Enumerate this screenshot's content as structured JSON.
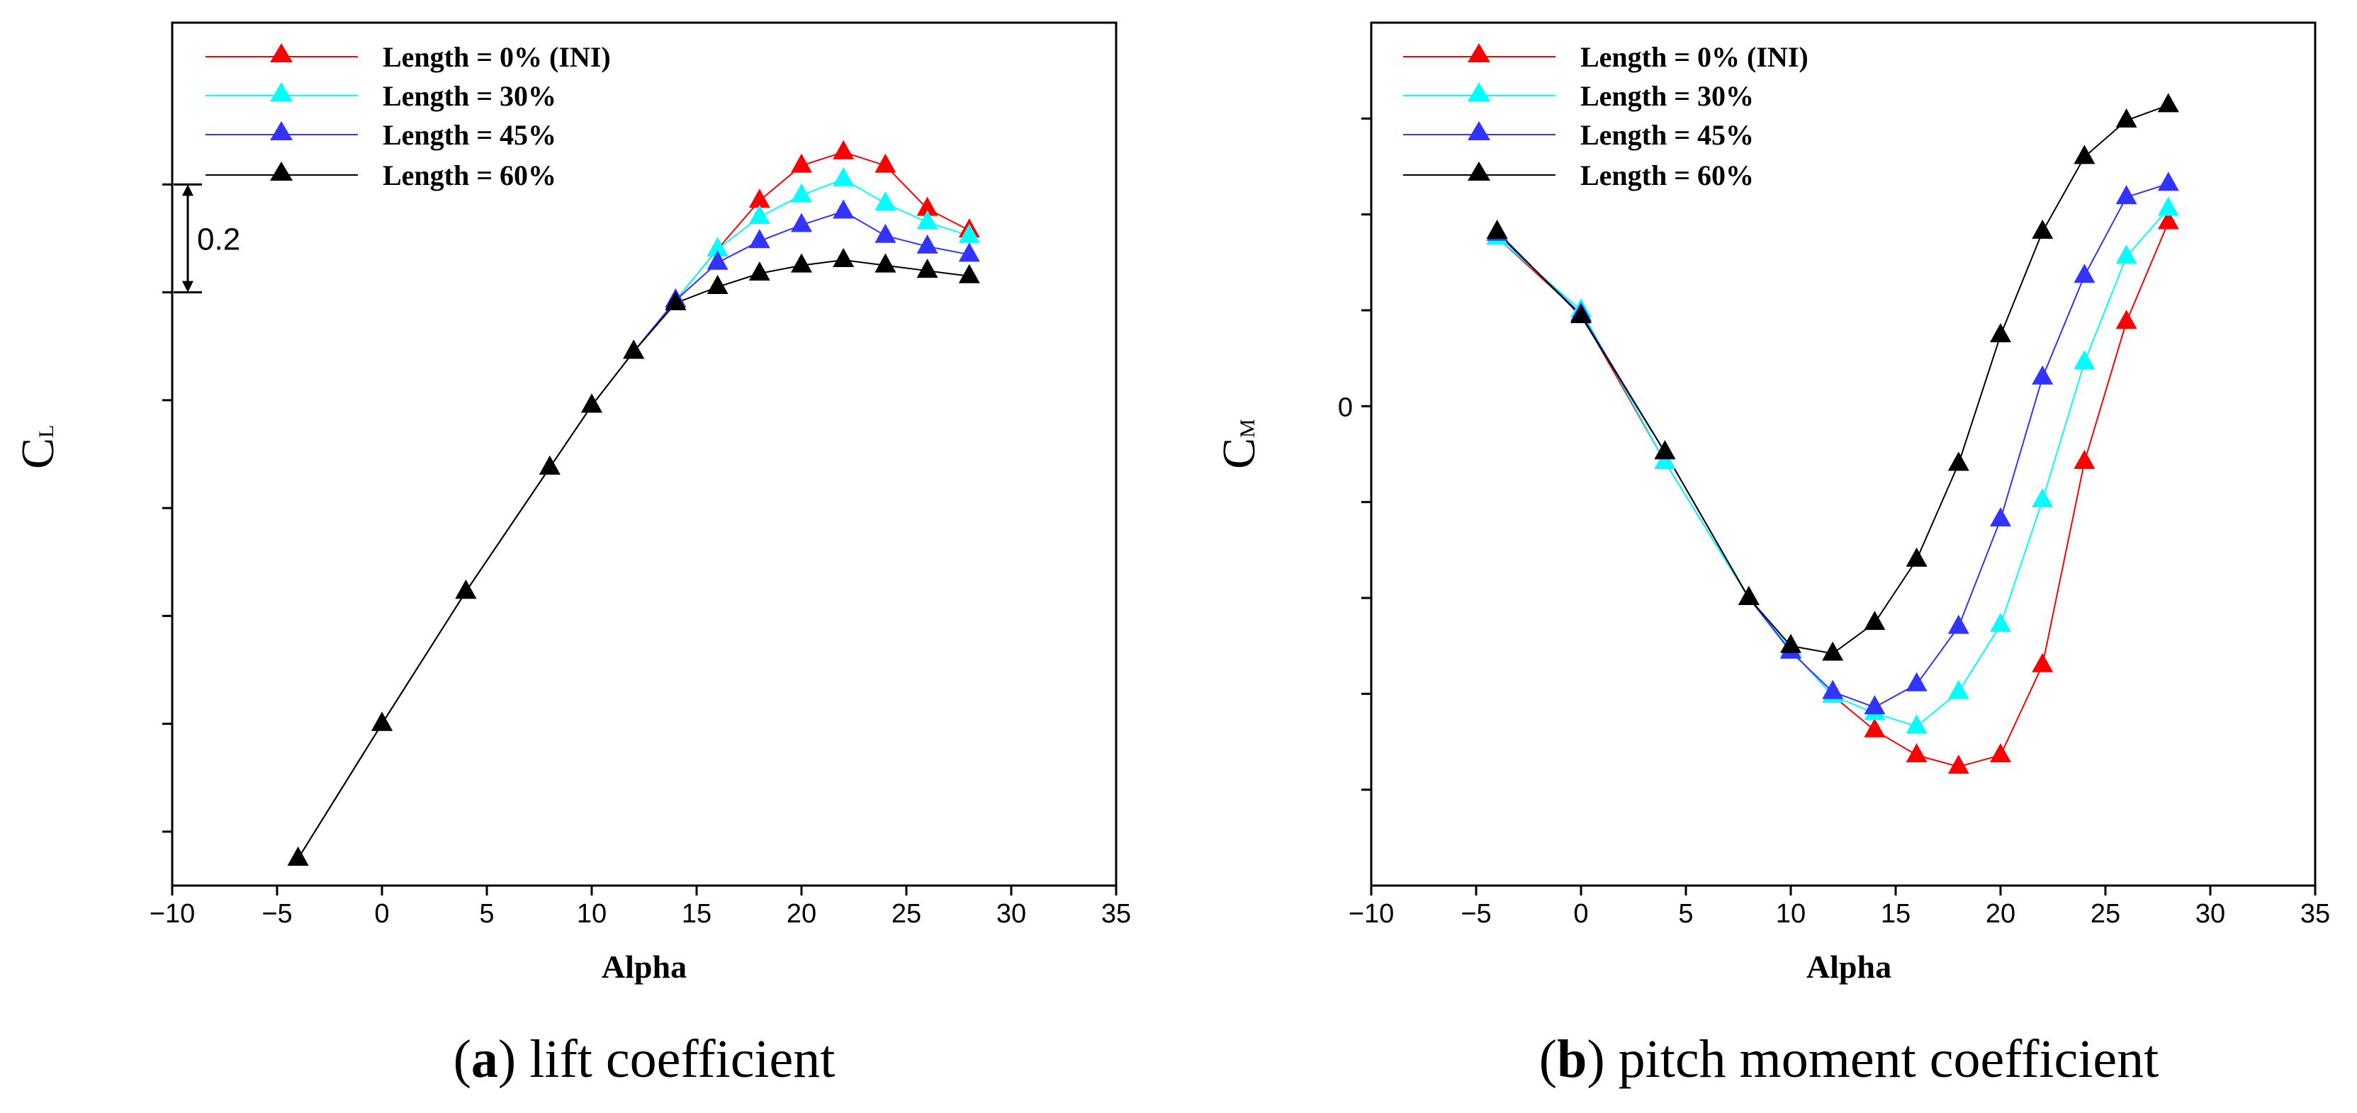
{
  "chart_data": [
    {
      "type": "line",
      "panel_id": "a",
      "caption_label": "a",
      "caption_text": "lift coefficient",
      "xlabel": "Alpha",
      "ylabel_main": "C",
      "ylabel_sub": "L",
      "xlim": [
        -10,
        35
      ],
      "xticks": [
        -10,
        -5,
        0,
        5,
        10,
        15,
        20,
        25,
        30,
        35
      ],
      "ylim": [
        -0.3,
        1.3
      ],
      "yticks": [
        -0.2,
        0,
        0.2,
        0.4,
        0.6,
        0.8,
        1.0
      ],
      "ytick_labels_shown": [],
      "scale_bar": {
        "from": 0.8,
        "to": 1.0,
        "label": "0.2"
      },
      "x": [
        -4,
        0,
        4,
        8,
        10,
        12,
        14,
        16,
        18,
        20,
        22,
        24,
        26,
        28
      ],
      "series": [
        {
          "name": "Length = 0% (INI)",
          "color": "#ff0000",
          "values": [
            -0.25,
            0.0,
            0.245,
            0.475,
            0.59,
            0.69,
            0.785,
            0.88,
            0.97,
            1.035,
            1.06,
            1.035,
            0.955,
            0.915
          ]
        },
        {
          "name": "Length = 30%",
          "color": "#00ffff",
          "values": [
            -0.25,
            0.0,
            0.245,
            0.475,
            0.59,
            0.69,
            0.785,
            0.88,
            0.94,
            0.98,
            1.01,
            0.965,
            0.93,
            0.905
          ]
        },
        {
          "name": "Length = 45%",
          "color": "#3333ff",
          "values": [
            -0.25,
            0.0,
            0.245,
            0.475,
            0.59,
            0.69,
            0.785,
            0.855,
            0.895,
            0.925,
            0.95,
            0.905,
            0.885,
            0.87
          ]
        },
        {
          "name": "Length = 60%",
          "color": "#000000",
          "values": [
            -0.25,
            0.0,
            0.245,
            0.475,
            0.59,
            0.69,
            0.78,
            0.81,
            0.835,
            0.85,
            0.86,
            0.85,
            0.84,
            0.83
          ]
        }
      ]
    },
    {
      "type": "line",
      "panel_id": "b",
      "caption_label": "b",
      "caption_text": "pitch moment coefficient",
      "xlabel": "Alpha",
      "ylabel_main": "C",
      "ylabel_sub": "M",
      "xlim": [
        -10,
        35
      ],
      "xticks": [
        -10,
        -5,
        0,
        5,
        10,
        15,
        20,
        25,
        30,
        35
      ],
      "ylim": [
        -0.25,
        0.2
      ],
      "yticks": [
        -0.2,
        -0.15,
        -0.1,
        -0.05,
        0,
        0.05,
        0.1,
        0.15
      ],
      "ytick_labels_shown": [
        0
      ],
      "x": [
        -4,
        0,
        4,
        8,
        10,
        12,
        14,
        16,
        18,
        20,
        22,
        24,
        26,
        28
      ],
      "series": [
        {
          "name": "Length = 0% (INI)",
          "color": "#ff0000",
          "values": [
            0.088,
            0.048,
            -0.029,
            -0.1,
            -0.127,
            -0.151,
            -0.169,
            -0.182,
            -0.188,
            -0.182,
            -0.135,
            -0.029,
            0.044,
            0.096
          ]
        },
        {
          "name": "Length = 30%",
          "color": "#00ffff",
          "values": [
            0.088,
            0.05,
            -0.029,
            -0.1,
            -0.127,
            -0.151,
            -0.16,
            -0.167,
            -0.149,
            -0.114,
            -0.049,
            0.023,
            0.078,
            0.103
          ]
        },
        {
          "name": "Length = 45%",
          "color": "#3333ff",
          "values": [
            0.09,
            0.048,
            -0.024,
            -0.1,
            -0.128,
            -0.149,
            -0.157,
            -0.145,
            -0.115,
            -0.059,
            0.015,
            0.068,
            0.109,
            0.116
          ]
        },
        {
          "name": "Length = 60%",
          "color": "#000000",
          "values": [
            0.091,
            0.047,
            -0.024,
            -0.1,
            -0.125,
            -0.129,
            -0.113,
            -0.08,
            -0.03,
            0.037,
            0.091,
            0.13,
            0.149,
            0.157
          ]
        }
      ]
    }
  ]
}
